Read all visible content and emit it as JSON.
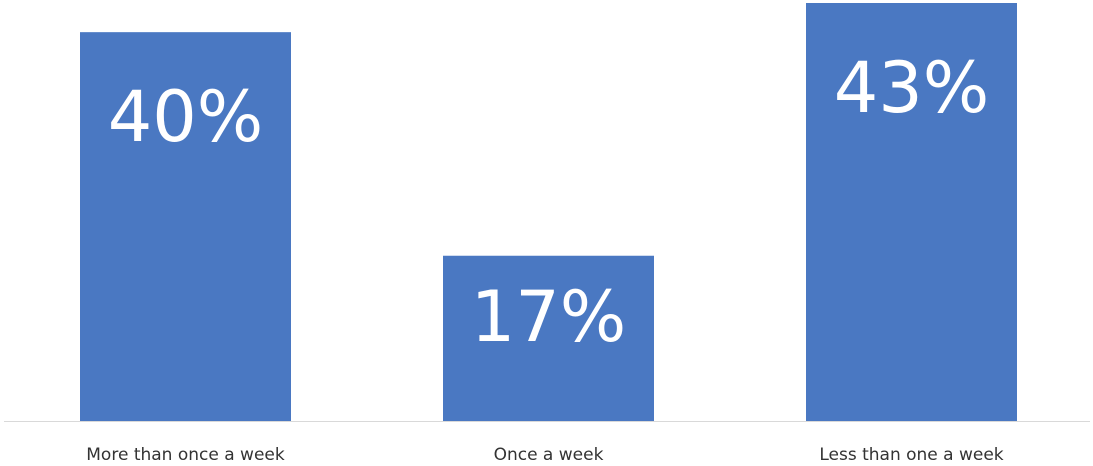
{
  "chart_data": {
    "type": "bar",
    "categories": [
      "More than once a week",
      "Once a week",
      "Less than one a week"
    ],
    "values": [
      40,
      17,
      43
    ],
    "value_labels": [
      "40%",
      "17%",
      "43%"
    ],
    "color": "#4a78c2"
  }
}
